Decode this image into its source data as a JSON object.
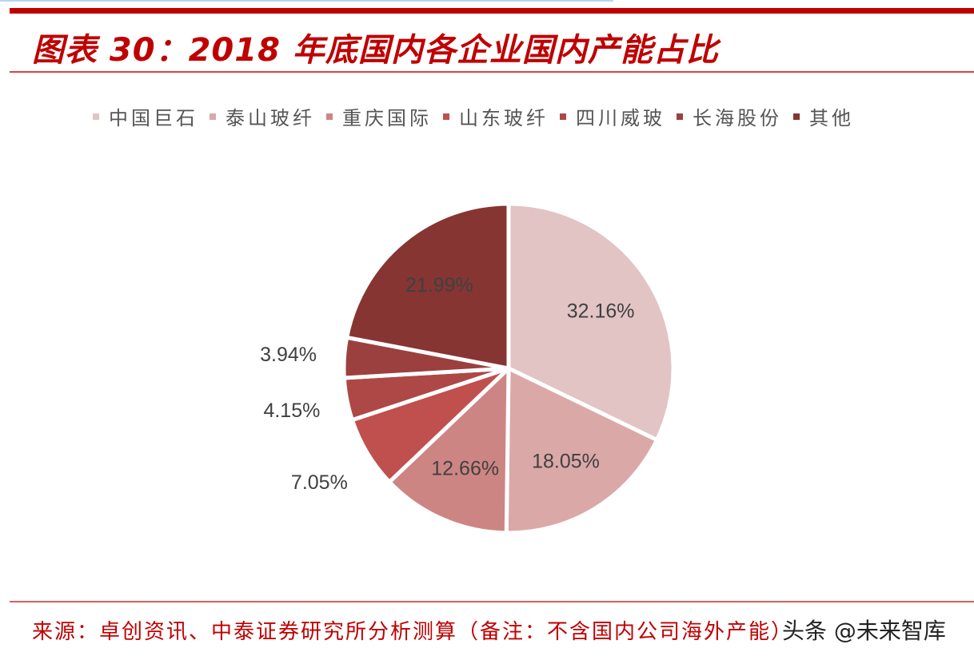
{
  "header": {
    "title": "图表 30：2018 年底国内各企业国内产能占比"
  },
  "legend": {
    "items": [
      {
        "label": "中国巨石",
        "color": "#E2C4C5"
      },
      {
        "label": "泰山玻纤",
        "color": "#DBA8A8"
      },
      {
        "label": "重庆国际",
        "color": "#CD8584"
      },
      {
        "label": "山东玻纤",
        "color": "#C0504D"
      },
      {
        "label": "四川威玻",
        "color": "#AD4846"
      },
      {
        "label": "长海股份",
        "color": "#9B403F"
      },
      {
        "label": "其他",
        "color": "#863533"
      }
    ]
  },
  "chart_data": {
    "type": "pie",
    "title": "2018 年底国内各企业国内产能占比",
    "categories": [
      "中国巨石",
      "泰山玻纤",
      "重庆国际",
      "山东玻纤",
      "四川威玻",
      "长海股份",
      "其他"
    ],
    "values": [
      32.16,
      18.05,
      12.66,
      7.05,
      4.15,
      3.94,
      21.99
    ],
    "labels": [
      "32.16%",
      "18.05%",
      "12.66%",
      "7.05%",
      "4.15%",
      "3.94%",
      "21.99%"
    ],
    "colors": [
      "#E2C4C5",
      "#DBA8A8",
      "#CD8584",
      "#C0504D",
      "#AD4846",
      "#9B403F",
      "#863533"
    ],
    "start_angle": "12 o'clock, clockwise",
    "legend_position": "top"
  },
  "footer": {
    "source": "来源：卓创资讯、中泰证券研究所分析测算（备注：不含国内公司海外产能）",
    "watermark": "头条 @未来智库"
  }
}
